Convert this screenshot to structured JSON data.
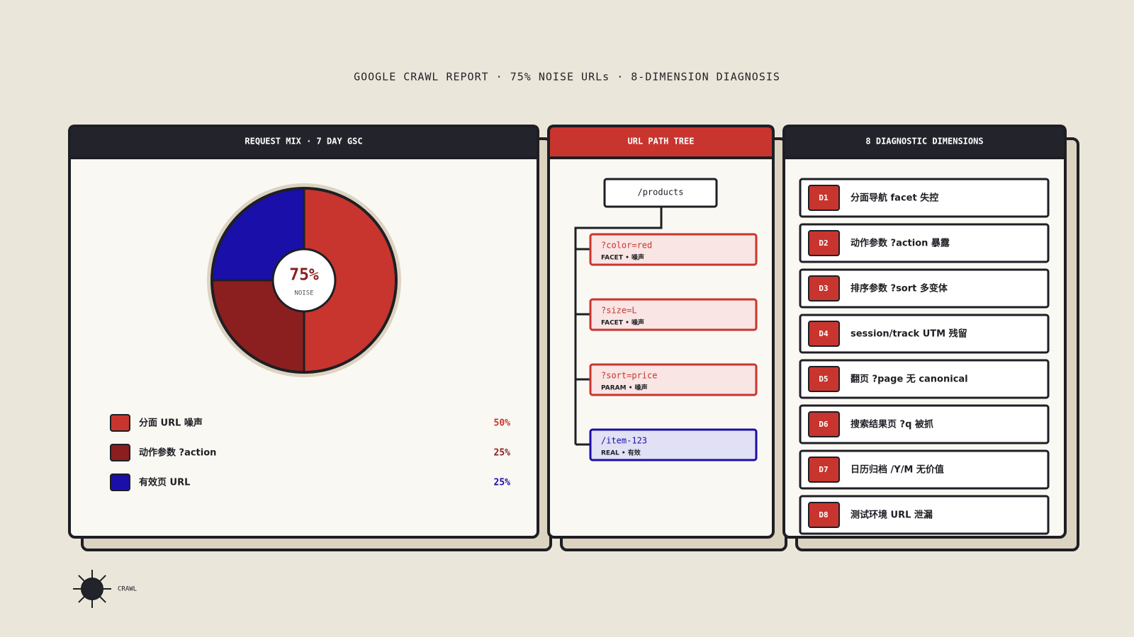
{
  "header": {
    "title": "GOOGLE CRAWL REPORT · 75% NOISE URLs · 8-DIMENSION DIAGNOSIS"
  },
  "chart_data": {
    "type": "pie",
    "title": "REQUEST MIX · 7 DAY GSC",
    "categories": [
      "分面 URL 噪声",
      "动作参数 ?action",
      "有效页 URL"
    ],
    "values": [
      50,
      25,
      25
    ],
    "value_labels": [
      "50%",
      "25%",
      "25%"
    ],
    "colors": [
      "#c8352e",
      "#8b1f1f",
      "#1a0fa8"
    ],
    "center_value": "75%",
    "center_label": "NOISE"
  },
  "tree": {
    "title": "URL PATH TREE",
    "root": "/products",
    "nodes": [
      {
        "param": "?color=red",
        "tag": "FACET • 噪声",
        "color": "#c8352e"
      },
      {
        "param": "?size=L",
        "tag": "FACET • 噪声",
        "color": "#c8352e"
      },
      {
        "param": "?sort=price",
        "tag": "PARAM • 噪声",
        "color": "#c8352e"
      },
      {
        "param": "/item-123",
        "tag": "REAL • 有效",
        "color": "#1a0fa8"
      }
    ]
  },
  "dimensions": {
    "title": "8 DIAGNOSTIC DIMENSIONS",
    "items": [
      {
        "id": "D1",
        "label": "分面导航 facet 失控"
      },
      {
        "id": "D2",
        "label": "动作参数 ?action 暴露"
      },
      {
        "id": "D3",
        "label": "排序参数 ?sort 多变体"
      },
      {
        "id": "D4",
        "label": "session/track UTM 残留"
      },
      {
        "id": "D5",
        "label": "翻页 ?page 无 canonical"
      },
      {
        "id": "D6",
        "label": "搜索结果页 ?q 被抓"
      },
      {
        "id": "D7",
        "label": "日历归档 /Y/M 无价值"
      },
      {
        "id": "D8",
        "label": "测试环境 URL 泄漏"
      }
    ]
  },
  "footer": {
    "label": "CRAWL"
  }
}
